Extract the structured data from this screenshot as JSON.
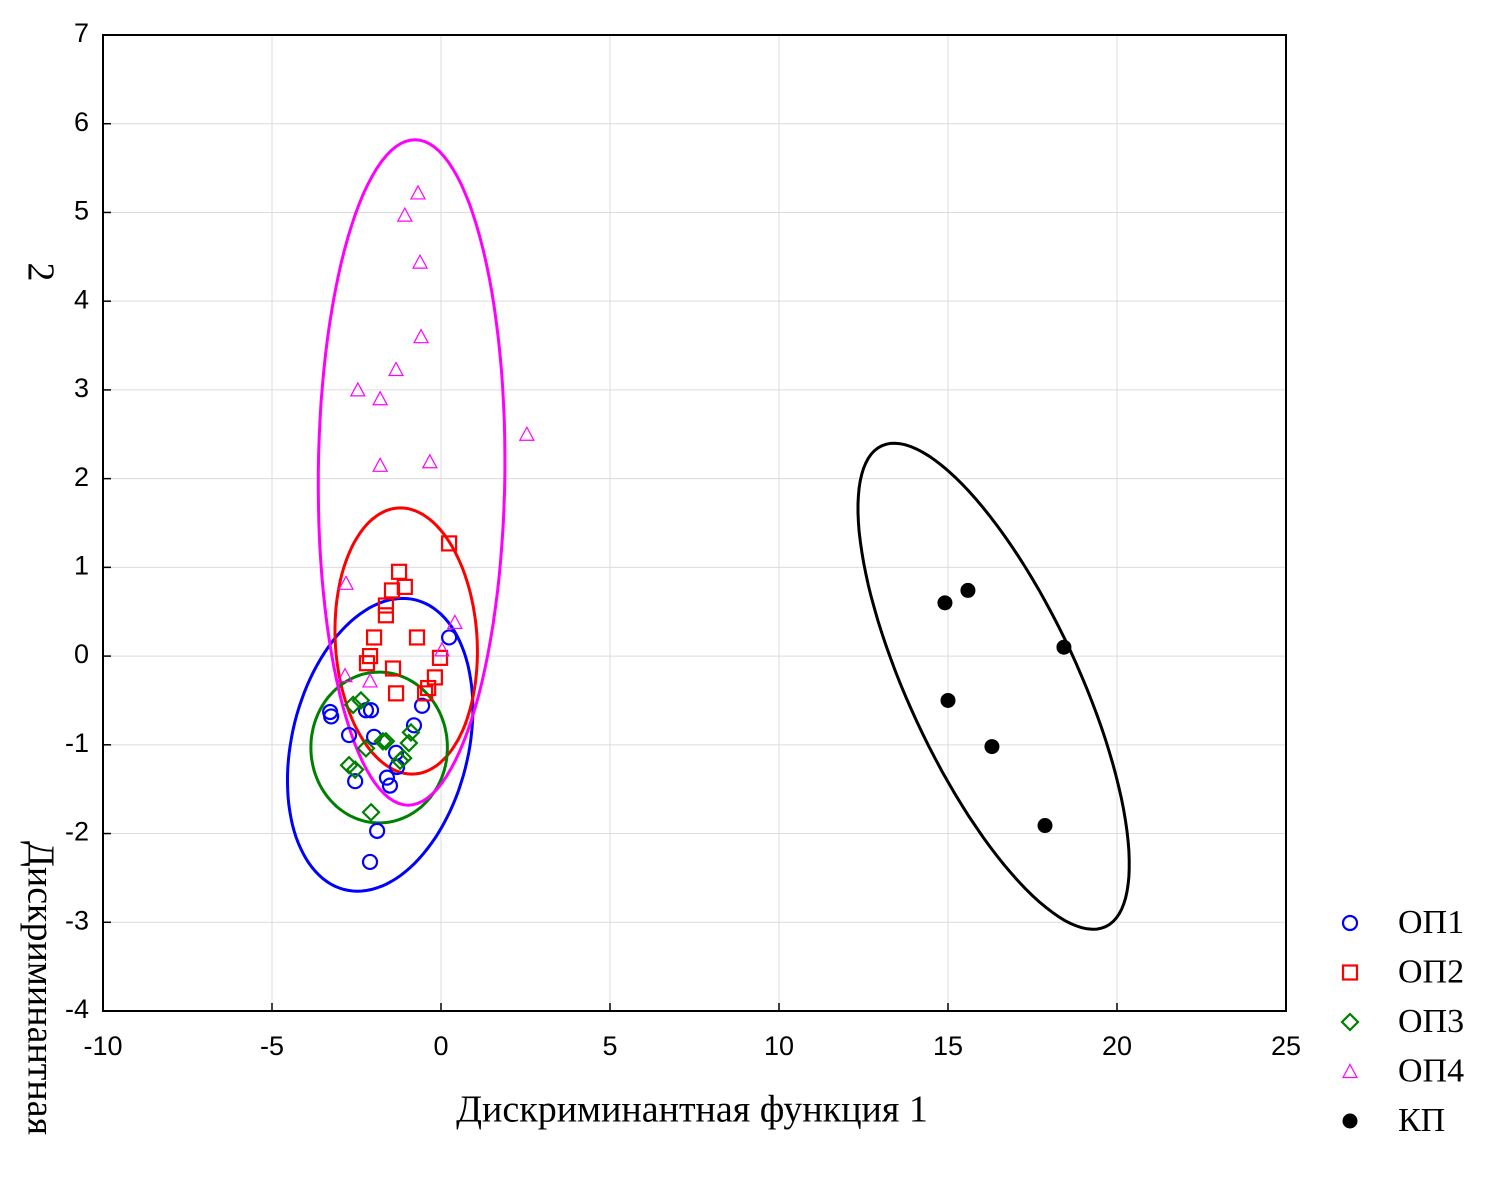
{
  "chart_data": {
    "type": "scatter",
    "xlabel": "Дискриминантная функция 1",
    "ylabel": [
      "Дискриминантная",
      "2"
    ],
    "xlim": [
      -10,
      25
    ],
    "ylim": [
      -4,
      7
    ],
    "xticks": [
      -10,
      -5,
      0,
      5,
      10,
      15,
      20,
      25
    ],
    "yticks": [
      -4,
      -3,
      -2,
      -1,
      0,
      1,
      2,
      3,
      4,
      5,
      6,
      7
    ],
    "grid": true,
    "legend": "lower right",
    "series": [
      {
        "name": "ОП1",
        "color": "#0000ff",
        "marker": "circle",
        "x": [
          -3.28,
          -3.25,
          -2.72,
          -2.54,
          -2.22,
          -2.07,
          -1.98,
          -1.89,
          -2.1,
          -1.6,
          -1.51,
          -1.33,
          -1.3,
          -0.8,
          -0.56,
          0.24
        ],
        "y": [
          -0.63,
          -0.68,
          -0.89,
          -1.41,
          -0.61,
          -0.61,
          -0.91,
          -1.97,
          -2.32,
          -1.37,
          -1.46,
          -1.09,
          -1.25,
          -0.78,
          -0.56,
          0.21
        ],
        "ellipse": {
          "center": [
            -1.8,
            -1.0
          ],
          "a": [
            0.67,
            1.65
          ],
          "b": [
            2.66,
            0
          ]
        }
      },
      {
        "name": "ОП2",
        "color": "#ff0000",
        "marker": "square",
        "x": [
          0.24,
          -1.24,
          -1.07,
          -1.45,
          -1.63,
          -1.63,
          -1.98,
          -0.71,
          -2.1,
          -2.19,
          -1.42,
          -0.03,
          -0.18,
          -0.38,
          -0.47,
          -1.33
        ],
        "y": [
          1.27,
          0.95,
          0.78,
          0.74,
          0.57,
          0.46,
          0.21,
          0.21,
          0.0,
          -0.08,
          -0.14,
          -0.02,
          -0.24,
          -0.36,
          -0.42,
          -0.42
        ],
        "ellipse": {
          "center": [
            -1.03,
            0.17
          ],
          "a": [
            -0.17,
            1.5
          ],
          "b": [
            2.1,
            0
          ]
        }
      },
      {
        "name": "ОП3",
        "color": "#008000",
        "marker": "diamond",
        "x": [
          -2.6,
          -2.37,
          -2.22,
          -1.72,
          -1.63,
          -0.89,
          -0.95,
          -1.12,
          -1.21,
          -2.72,
          -2.54,
          -2.07
        ],
        "y": [
          -0.55,
          -0.5,
          -1.04,
          -0.96,
          -0.96,
          -0.86,
          -0.98,
          -1.15,
          -1.18,
          -1.23,
          -1.28,
          -1.76
        ],
        "ellipse": {
          "center": [
            -1.83,
            -1.03
          ],
          "a": [
            0,
            0.85
          ],
          "b": [
            2.02,
            0
          ]
        }
      },
      {
        "name": "ОП4",
        "color": "#ff00ff",
        "marker": "triangle",
        "x": [
          -0.68,
          -1.07,
          -0.62,
          -0.59,
          -1.33,
          -2.46,
          -1.8,
          2.54,
          -0.33,
          -1.8,
          -2.81,
          0.41,
          0.03,
          -2.84,
          -2.1
        ],
        "y": [
          5.22,
          4.97,
          4.44,
          3.6,
          3.23,
          3.0,
          2.9,
          2.5,
          2.19,
          2.15,
          0.82,
          0.38,
          0.07,
          -0.22,
          -0.28
        ],
        "ellipse": {
          "center": [
            -0.87,
            2.07
          ],
          "a": [
            0.1,
            3.75
          ],
          "b": [
            2.76,
            0
          ]
        }
      },
      {
        "name": "КП",
        "color": "#000000",
        "marker": "dot",
        "x": [
          14.91,
          15.59,
          18.43,
          15.0,
          16.3,
          17.87
        ],
        "y": [
          0.6,
          0.74,
          0.1,
          -0.5,
          -1.02,
          -1.91
        ],
        "ellipse": {
          "center": [
            16.35,
            -0.34
          ],
          "a": [
            -3.31,
            2.71
          ],
          "b": [
            2.27,
            0.4
          ]
        }
      }
    ]
  }
}
